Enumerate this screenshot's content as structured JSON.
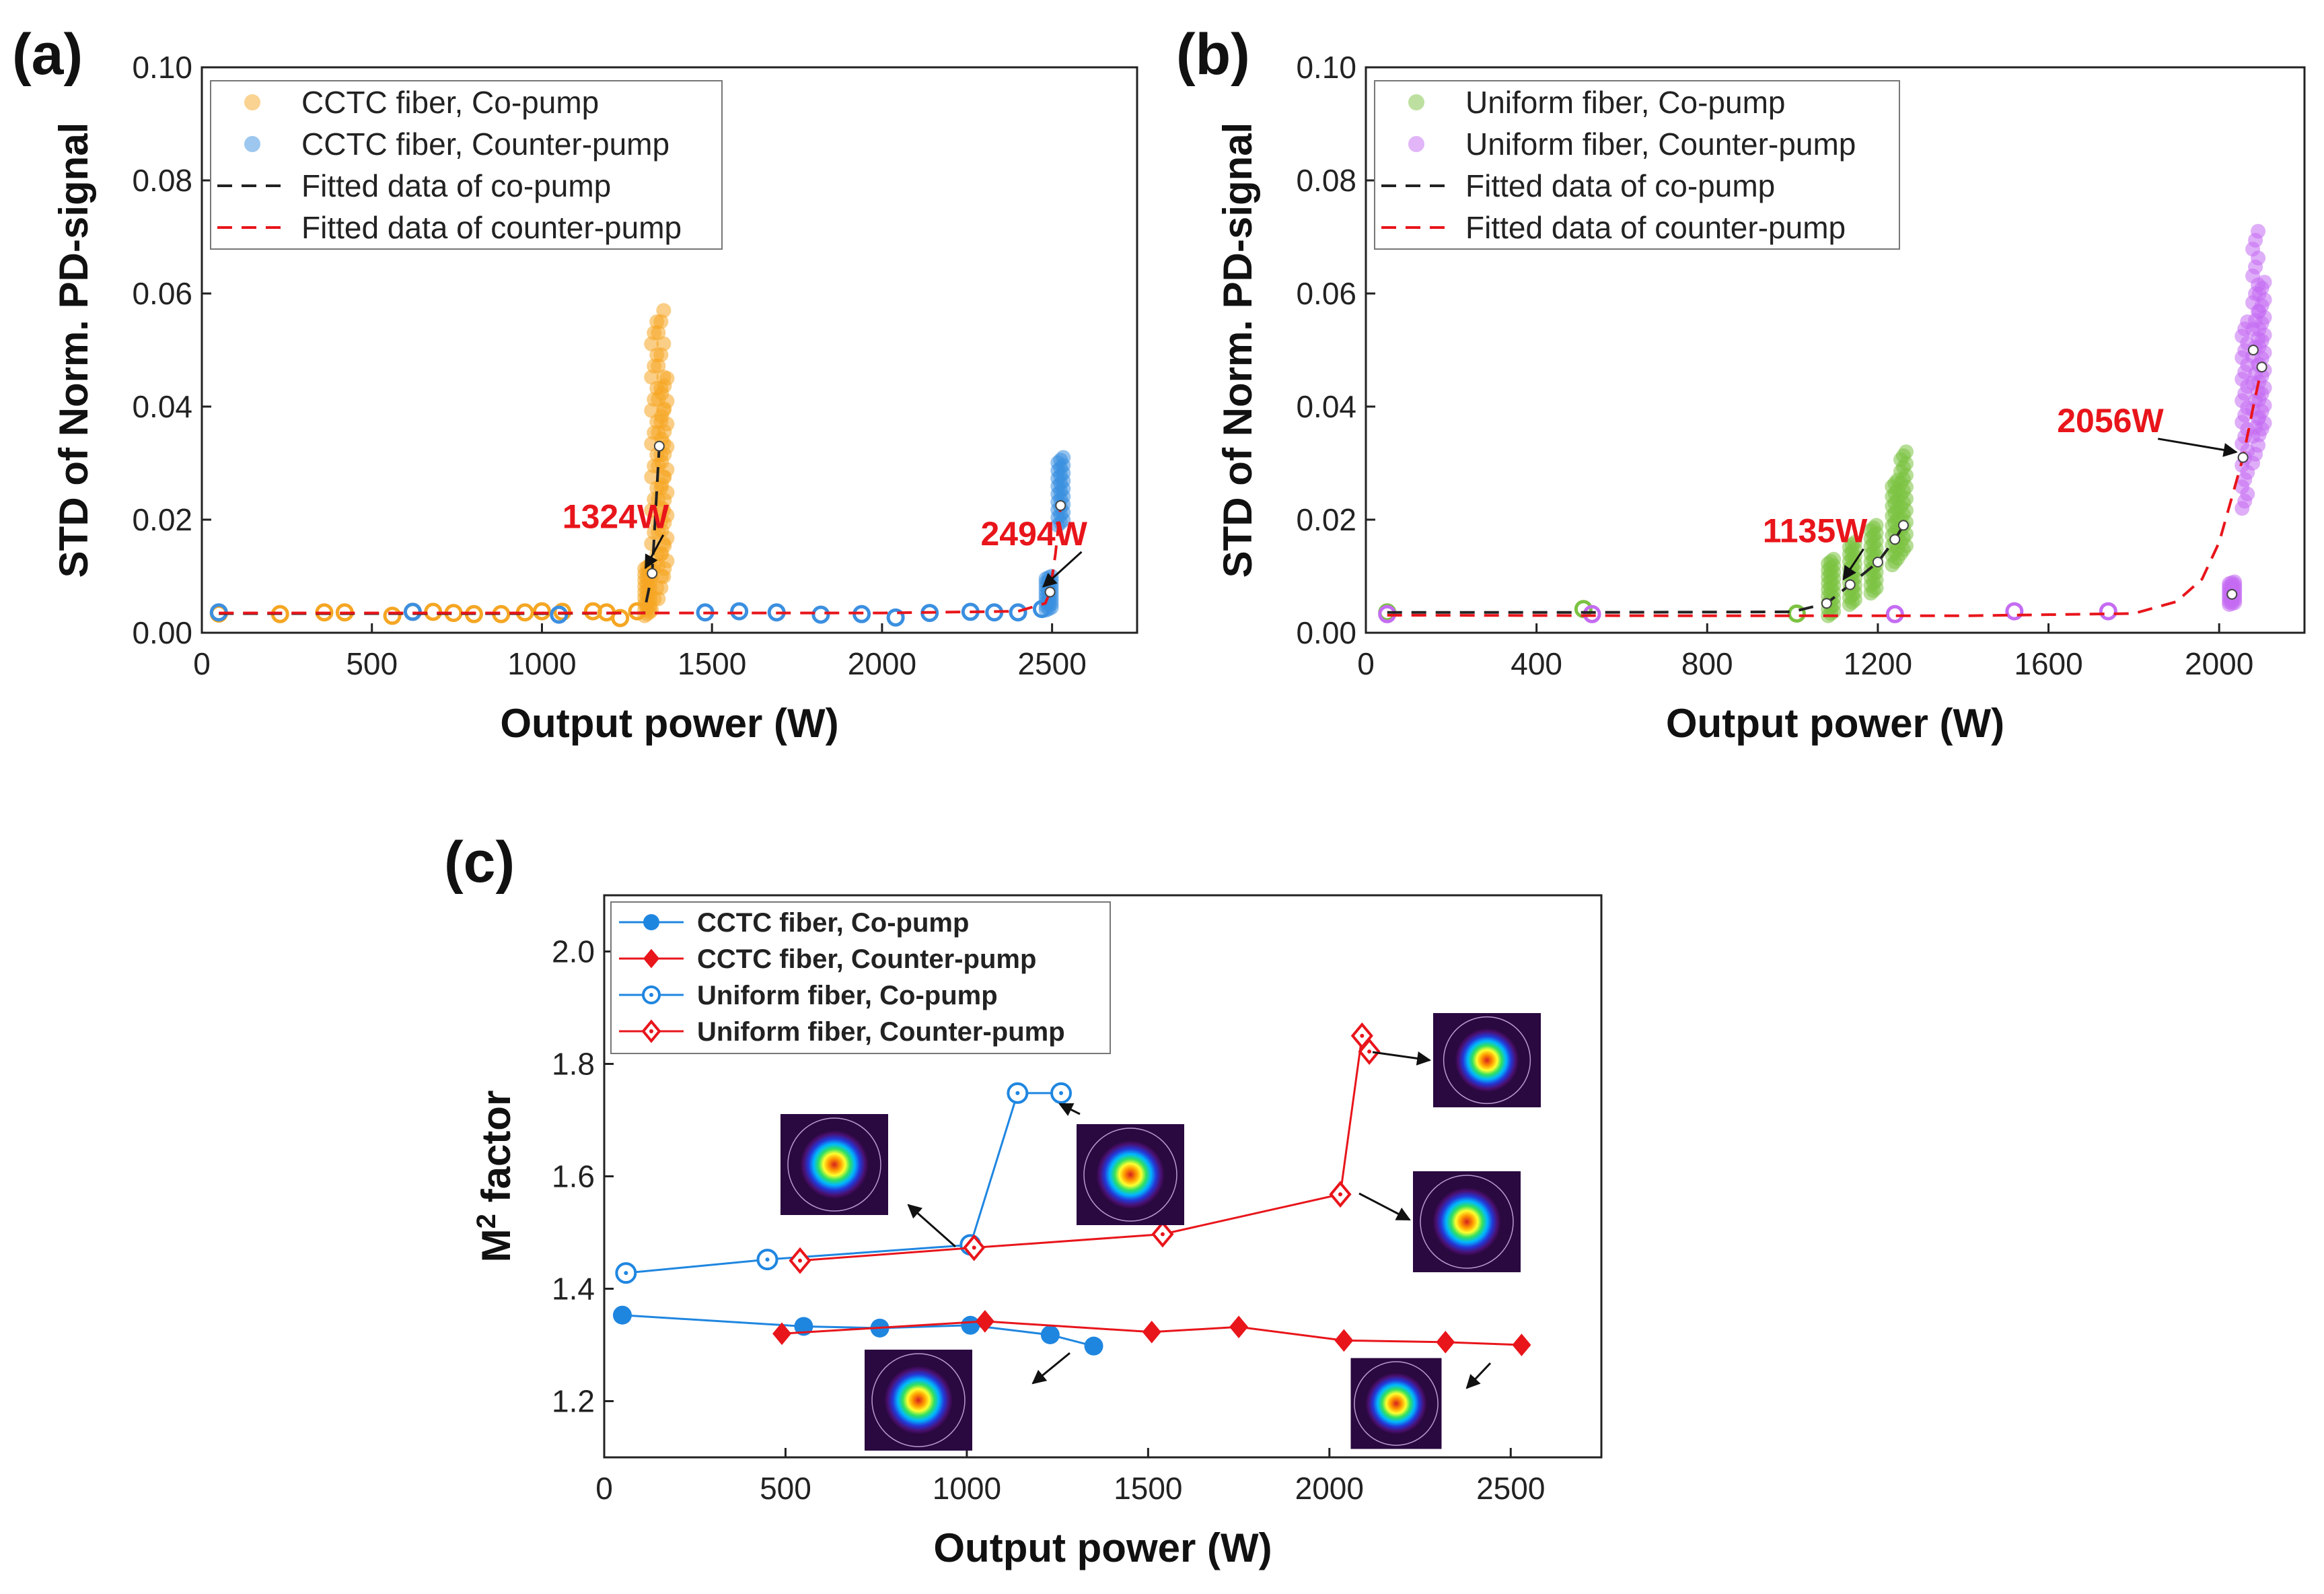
{
  "panels": [
    {
      "id": "a",
      "label": "(a)",
      "chart_data": {
        "type": "scatter",
        "xlabel": "Output power (W)",
        "ylabel": "STD of Norm. PD-signal",
        "xlim": [
          0,
          2750
        ],
        "ylim": [
          0,
          0.1
        ],
        "xticks": [
          0,
          500,
          1000,
          1500,
          2000,
          2500
        ],
        "xtick_labels": [
          "0",
          "500",
          "1000",
          "1500",
          "2000",
          "2500"
        ],
        "yticks": [
          0,
          0.02,
          0.04,
          0.06,
          0.08,
          0.1
        ],
        "ytick_labels": [
          "0.00",
          "0.02",
          "0.04",
          "0.06",
          "0.08",
          "0.10"
        ],
        "grid": false,
        "legend_position": "top-left",
        "series": [
          {
            "name": "CCTC fiber, Co-pump",
            "kind": "scatter",
            "color": "#f5a623",
            "circles": [
              [
                50,
                0.0034
              ],
              [
                230,
                0.0033
              ],
              [
                360,
                0.0036
              ],
              [
                420,
                0.0036
              ],
              [
                560,
                0.003
              ],
              [
                620,
                0.0037
              ],
              [
                680,
                0.0037
              ],
              [
                740,
                0.0035
              ],
              [
                800,
                0.0033
              ],
              [
                880,
                0.0033
              ],
              [
                950,
                0.0036
              ],
              [
                1000,
                0.0038
              ],
              [
                1060,
                0.0037
              ],
              [
                1150,
                0.0038
              ],
              [
                1190,
                0.0036
              ],
              [
                1230,
                0.0026
              ],
              [
                1280,
                0.0038
              ]
            ],
            "clusters": [
              [
                1310,
                0.003,
                0.012
              ],
              [
                1330,
                0.004,
                0.055
              ],
              [
                1350,
                0.006,
                0.057
              ],
              [
                1360,
                0.01,
                0.045
              ]
            ],
            "mean_points": [
              [
                1324,
                0.0105
              ],
              [
                1345,
                0.033
              ]
            ]
          },
          {
            "name": "CCTC fiber, Counter-pump",
            "kind": "scatter",
            "color": "#3b8fe0",
            "circles": [
              [
                50,
                0.0036
              ],
              [
                620,
                0.0037
              ],
              [
                1050,
                0.0032
              ],
              [
                1480,
                0.0036
              ],
              [
                1580,
                0.0038
              ],
              [
                1690,
                0.0036
              ],
              [
                1820,
                0.0032
              ],
              [
                1940,
                0.0033
              ],
              [
                2040,
                0.0027
              ],
              [
                2140,
                0.0035
              ],
              [
                2260,
                0.0037
              ],
              [
                2330,
                0.0036
              ],
              [
                2400,
                0.0036
              ],
              [
                2470,
                0.0042
              ]
            ],
            "clusters": [
              [
                2490,
                0.004,
                0.01
              ],
              [
                2525,
                0.019,
                0.031
              ]
            ],
            "mean_points": [
              [
                2494,
                0.0072
              ],
              [
                2525,
                0.0225
              ]
            ]
          },
          {
            "name": "Fitted data of co-pump",
            "kind": "line",
            "color": "#222222",
            "dash": "22,14",
            "x": [
              50,
              500,
              1000,
              1300,
              1324,
              1345
            ],
            "y": [
              0.0034,
              0.0034,
              0.0034,
              0.0035,
              0.0105,
              0.033
            ]
          },
          {
            "name": "Fitted data of counter-pump",
            "kind": "line",
            "color": "#e8151b",
            "dash": "22,14",
            "x": [
              50,
              1000,
              1500,
              2000,
              2400,
              2480,
              2494,
              2510,
              2525
            ],
            "y": [
              0.0035,
              0.0035,
              0.0035,
              0.0035,
              0.0038,
              0.0052,
              0.0072,
              0.014,
              0.0225
            ]
          }
        ],
        "annotations": [
          {
            "text": "1324W",
            "color": "#e8151b",
            "x": 1324,
            "y": 0.0105,
            "label_at": [
              1060,
              0.0185
            ]
          },
          {
            "text": "2494W",
            "color": "#e8151b",
            "x": 2494,
            "y": 0.0072,
            "label_at": [
              2290,
              0.0155
            ]
          }
        ]
      }
    },
    {
      "id": "b",
      "label": "(b)",
      "chart_data": {
        "type": "scatter",
        "xlabel": "Output power (W)",
        "ylabel": "STD of Norm. PD-signal",
        "xlim": [
          0,
          2200
        ],
        "ylim": [
          0,
          0.1
        ],
        "xticks": [
          0,
          400,
          800,
          1200,
          1600,
          2000
        ],
        "xtick_labels": [
          "0",
          "400",
          "800",
          "1200",
          "1600",
          "2000"
        ],
        "yticks": [
          0,
          0.02,
          0.04,
          0.06,
          0.08,
          0.1
        ],
        "ytick_labels": [
          "0.00",
          "0.02",
          "0.04",
          "0.06",
          "0.08",
          "0.10"
        ],
        "grid": false,
        "legend_position": "top-left",
        "series": [
          {
            "name": "Uniform fiber, Co-pump",
            "kind": "scatter",
            "color": "#7cc242",
            "circles": [
              [
                50,
                0.0036
              ],
              [
                510,
                0.0042
              ],
              [
                1010,
                0.0034
              ]
            ],
            "clusters": [
              [
                1090,
                0.003,
                0.013
              ],
              [
                1140,
                0.005,
                0.016
              ],
              [
                1190,
                0.007,
                0.019
              ],
              [
                1240,
                0.012,
                0.027
              ],
              [
                1260,
                0.014,
                0.032
              ]
            ],
            "mean_points": [
              [
                1080,
                0.0052
              ],
              [
                1135,
                0.0085
              ],
              [
                1200,
                0.0125
              ],
              [
                1240,
                0.0165
              ],
              [
                1260,
                0.019
              ]
            ]
          },
          {
            "name": "Uniform fiber, Counter-pump",
            "kind": "scatter",
            "color": "#c46cf2",
            "circles": [
              [
                50,
                0.0033
              ],
              [
                530,
                0.0033
              ],
              [
                1240,
                0.0033
              ],
              [
                1520,
                0.0038
              ],
              [
                1740,
                0.0038
              ]
            ],
            "clusters": [
              [
                2030,
                0.005,
                0.009
              ],
              [
                2060,
                0.022,
                0.055
              ],
              [
                2085,
                0.03,
                0.071
              ],
              [
                2100,
                0.035,
                0.062
              ]
            ],
            "mean_points": [
              [
                2030,
                0.0068
              ],
              [
                2056,
                0.031
              ],
              [
                2080,
                0.05
              ],
              [
                2100,
                0.047
              ]
            ]
          },
          {
            "name": "Fitted data of co-pump",
            "kind": "line",
            "color": "#222222",
            "dash": "22,14",
            "x": [
              50,
              500,
              1000,
              1080,
              1135,
              1200,
              1240,
              1260
            ],
            "y": [
              0.0036,
              0.0036,
              0.0037,
              0.0052,
              0.0085,
              0.0125,
              0.0165,
              0.019
            ]
          },
          {
            "name": "Fitted data of counter-pump",
            "kind": "line",
            "color": "#e8151b",
            "dash": "22,14",
            "x": [
              50,
              800,
              1400,
              1800,
              1900,
              1960,
              2000,
              2030,
              2056,
              2080,
              2100
            ],
            "y": [
              0.0031,
              0.003,
              0.003,
              0.0034,
              0.0055,
              0.0095,
              0.016,
              0.024,
              0.031,
              0.04,
              0.047
            ]
          }
        ],
        "annotations": [
          {
            "text": "1135W",
            "color": "#e8151b",
            "x": 1135,
            "y": 0.0085,
            "label_at": [
              930,
              0.016
            ]
          },
          {
            "text": "2056W",
            "color": "#e8151b",
            "x": 2056,
            "y": 0.031,
            "label_at": [
              1620,
              0.0355
            ]
          }
        ]
      }
    },
    {
      "id": "c",
      "label": "(c)",
      "chart_data": {
        "type": "line",
        "xlabel": "Output power (W)",
        "ylabel": "M² factor",
        "xlim": [
          0,
          2750
        ],
        "ylim": [
          1.1,
          2.1
        ],
        "xticks": [
          0,
          500,
          1000,
          1500,
          2000,
          2500
        ],
        "xtick_labels": [
          "0",
          "500",
          "1000",
          "1500",
          "2000",
          "2500"
        ],
        "yticks": [
          1.2,
          1.4,
          1.6,
          1.8,
          2.0
        ],
        "ytick_labels": [
          "1.2",
          "1.4",
          "1.6",
          "1.8",
          "2.0"
        ],
        "grid": false,
        "legend_position": "top-left",
        "series": [
          {
            "name": "CCTC fiber, Co-pump",
            "color": "#1f86e0",
            "marker": "circle-filled",
            "x": [
              50,
              550,
              760,
              1010,
              1230,
              1350
            ],
            "y": [
              1.353,
              1.333,
              1.33,
              1.335,
              1.318,
              1.298
            ]
          },
          {
            "name": "CCTC fiber, Counter-pump",
            "color": "#e8151b",
            "marker": "diamond-filled",
            "x": [
              490,
              1050,
              1510,
              1750,
              2040,
              2320,
              2530
            ],
            "y": [
              1.32,
              1.342,
              1.323,
              1.332,
              1.308,
              1.305,
              1.3
            ]
          },
          {
            "name": "Uniform fiber, Co-pump",
            "color": "#1f86e0",
            "marker": "circle-open",
            "x": [
              60,
              450,
              1010,
              1140,
              1260
            ],
            "y": [
              1.428,
              1.452,
              1.478,
              1.748,
              1.748
            ]
          },
          {
            "name": "Uniform fiber, Counter-pump",
            "color": "#e8151b",
            "marker": "diamond-open",
            "x": [
              540,
              1020,
              1540,
              2030,
              2090,
              2110
            ],
            "y": [
              1.45,
              1.473,
              1.497,
              1.568,
              1.85,
              1.822
            ]
          }
        ]
      }
    }
  ]
}
